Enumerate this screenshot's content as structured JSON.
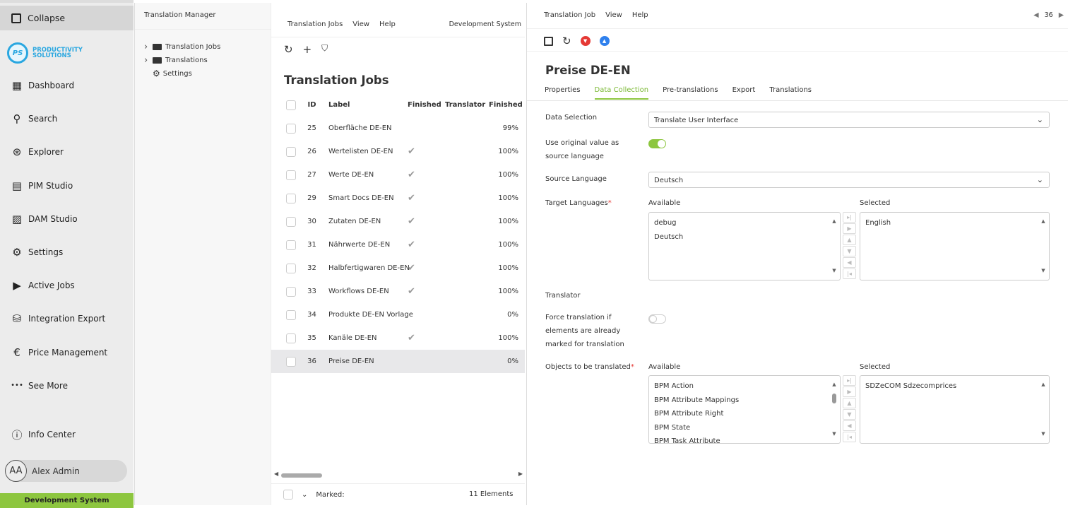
{
  "sidebar": {
    "collapse": "Collapse",
    "logo": {
      "mark": "PS",
      "line1": "PRODUCTIVITY",
      "line2": "SOLUTIONS"
    },
    "items": [
      {
        "label": "Dashboard",
        "icon": "dashboard-icon",
        "glyph": "▦"
      },
      {
        "label": "Search",
        "icon": "search-icon",
        "glyph": "⚲"
      },
      {
        "label": "Explorer",
        "icon": "explorer-icon",
        "glyph": "⊛"
      },
      {
        "label": "PIM Studio",
        "icon": "pim-icon",
        "glyph": "▤"
      },
      {
        "label": "DAM Studio",
        "icon": "image-icon",
        "glyph": "▨"
      },
      {
        "label": "Settings",
        "icon": "gear-icon",
        "glyph": "⚙"
      },
      {
        "label": "Active Jobs",
        "icon": "play-icon",
        "glyph": "▶"
      },
      {
        "label": "Integration Export",
        "icon": "database-export-icon",
        "glyph": "⛁"
      },
      {
        "label": "Price Management",
        "icon": "euro-icon",
        "glyph": "€"
      },
      {
        "label": "See More",
        "icon": "more-icon",
        "glyph": "•••"
      }
    ],
    "info": "Info Center",
    "user": {
      "initials": "AA",
      "name": "Alex Admin"
    },
    "env": "Development System"
  },
  "tree": {
    "title": "Translation Manager",
    "items": [
      {
        "label": "Translation Jobs",
        "expandable": true
      },
      {
        "label": "Translations",
        "expandable": true
      },
      {
        "label": "Settings",
        "expandable": false
      }
    ]
  },
  "list": {
    "menu": [
      "Translation Jobs",
      "View",
      "Help"
    ],
    "env": "Development System",
    "title": "Translation Jobs",
    "columns": [
      "ID",
      "Label",
      "Finished",
      "Translator",
      "Finished"
    ],
    "rows": [
      {
        "id": "25",
        "label": "Oberfläche DE-EN",
        "finished": false,
        "pct": "99%"
      },
      {
        "id": "26",
        "label": "Wertelisten DE-EN",
        "finished": true,
        "pct": "100%"
      },
      {
        "id": "27",
        "label": "Werte DE-EN",
        "finished": true,
        "pct": "100%"
      },
      {
        "id": "29",
        "label": "Smart Docs DE-EN",
        "finished": true,
        "pct": "100%"
      },
      {
        "id": "30",
        "label": "Zutaten DE-EN",
        "finished": true,
        "pct": "100%"
      },
      {
        "id": "31",
        "label": "Nährwerte DE-EN",
        "finished": true,
        "pct": "100%"
      },
      {
        "id": "32",
        "label": "Halbfertigwaren DE-EN",
        "finished": true,
        "pct": "100%"
      },
      {
        "id": "33",
        "label": "Workflows DE-EN",
        "finished": true,
        "pct": "100%"
      },
      {
        "id": "34",
        "label": "Produkte DE-EN Vorlage",
        "finished": false,
        "pct": "0%"
      },
      {
        "id": "35",
        "label": "Kanäle DE-EN",
        "finished": true,
        "pct": "100%"
      },
      {
        "id": "36",
        "label": "Preise DE-EN",
        "finished": false,
        "pct": "0%",
        "selected": true
      }
    ],
    "marked": "Marked:",
    "count": "11 Elements"
  },
  "detail": {
    "menu": [
      "Translation Job",
      "View",
      "Help"
    ],
    "pager": "36",
    "title": "Preise DE-EN",
    "tabs": [
      "Properties",
      "Data Collection",
      "Pre-translations",
      "Export",
      "Translations"
    ],
    "active_tab": "Data Collection",
    "data_selection": {
      "label": "Data Selection",
      "value": "Translate User Interface"
    },
    "use_original": {
      "label": "Use original value as source language",
      "on": true
    },
    "source": {
      "label": "Source Language",
      "value": "Deutsch"
    },
    "targets": {
      "label": "Target Languages",
      "available_label": "Available",
      "selected_label": "Selected",
      "available": [
        "debug",
        "Deutsch"
      ],
      "selected": [
        "English"
      ]
    },
    "translator": {
      "label": "Translator"
    },
    "force": {
      "label": "Force translation if elements are already marked for translation",
      "on": false
    },
    "objects": {
      "label": "Objects to be translated",
      "available_label": "Available",
      "selected_label": "Selected",
      "available": [
        "BPM Action",
        "BPM Attribute Mappings",
        "BPM Attribute Right",
        "BPM State",
        "BPM Task Attribute"
      ],
      "selected": [
        "SDZeCOM Sdzecomprices"
      ]
    },
    "colors": {
      "accent": "#8dc63f",
      "required": "#e53935",
      "down": "#e53935",
      "up": "#2f80ed"
    }
  }
}
